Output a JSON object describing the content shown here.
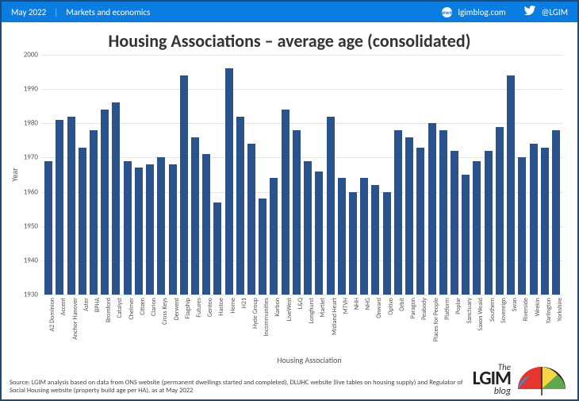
{
  "header": {
    "date": "May 2022",
    "section": "Markets and economics",
    "site": "lgimblog.com",
    "twitter": "@LGIM",
    "bg_color": "#0a7de3",
    "text_color": "#ffffff"
  },
  "chart": {
    "type": "bar",
    "title": "Housing Associations – average age (consolidated)",
    "y_label": "Year",
    "x_label": "Housing Association",
    "ylim": [
      1930,
      2000
    ],
    "ytick_step": 10,
    "yticks": [
      "1930",
      "1940",
      "1950",
      "1960",
      "1970",
      "1980",
      "1990",
      "2000"
    ],
    "bar_color": "#2a528d",
    "grid_color": "#e6e6e6",
    "background_color": "#ffffff",
    "title_fontsize": 22,
    "label_fontsize": 10,
    "tick_fontsize": 9,
    "categories": [
      "A2 Dominion",
      "Accent",
      "Anchor Hanover",
      "Aster",
      "BPHA",
      "Bromford",
      "Catalyst",
      "Chelmer",
      "Citizen",
      "Clarion",
      "Cross Keys",
      "Derwent",
      "Flagship",
      "Futures",
      "Gentoo",
      "Hastoe",
      "Home",
      "H21",
      "Hyde Group",
      "Incommunities",
      "Karbon",
      "LiveWest",
      "L&Q",
      "Longhurst",
      "Martlet",
      "Midland Heart",
      "MTVH",
      "NHH",
      "NHG",
      "Onward",
      "Optivo",
      "Orbit",
      "Paragon",
      "Peabody",
      "Places for People",
      "Platform",
      "Poplar",
      "Sanctuary",
      "Saxon Weald",
      "Southern",
      "Sovereign",
      "Swan",
      "Riverside",
      "Wrekin",
      "Yarlington",
      "Yorkshire"
    ],
    "values": [
      1969,
      1981,
      1982,
      1973,
      1978,
      1984,
      1986,
      1969,
      1967,
      1968,
      1970,
      1968,
      1994,
      1976,
      1971,
      1957,
      1996,
      1982,
      1974,
      1958,
      1964,
      1984,
      1978,
      1969,
      1966,
      1982,
      1964,
      1960,
      1964,
      1962,
      1960,
      1978,
      1976,
      1973,
      1980,
      1978,
      1972,
      1965,
      1969,
      1972,
      1979,
      1994,
      1970,
      1974,
      1973,
      1978
    ]
  },
  "footer": {
    "source": "Source: LGIM analysis based on data from ONS website (permanent dwellings started and completed), DLUHC website (live tables on housing supply) and Regulator of Social Housing website (property build age per HA), as at May 2022",
    "logo_the": "The",
    "logo_main": "LGIM",
    "logo_blog": "blog"
  }
}
